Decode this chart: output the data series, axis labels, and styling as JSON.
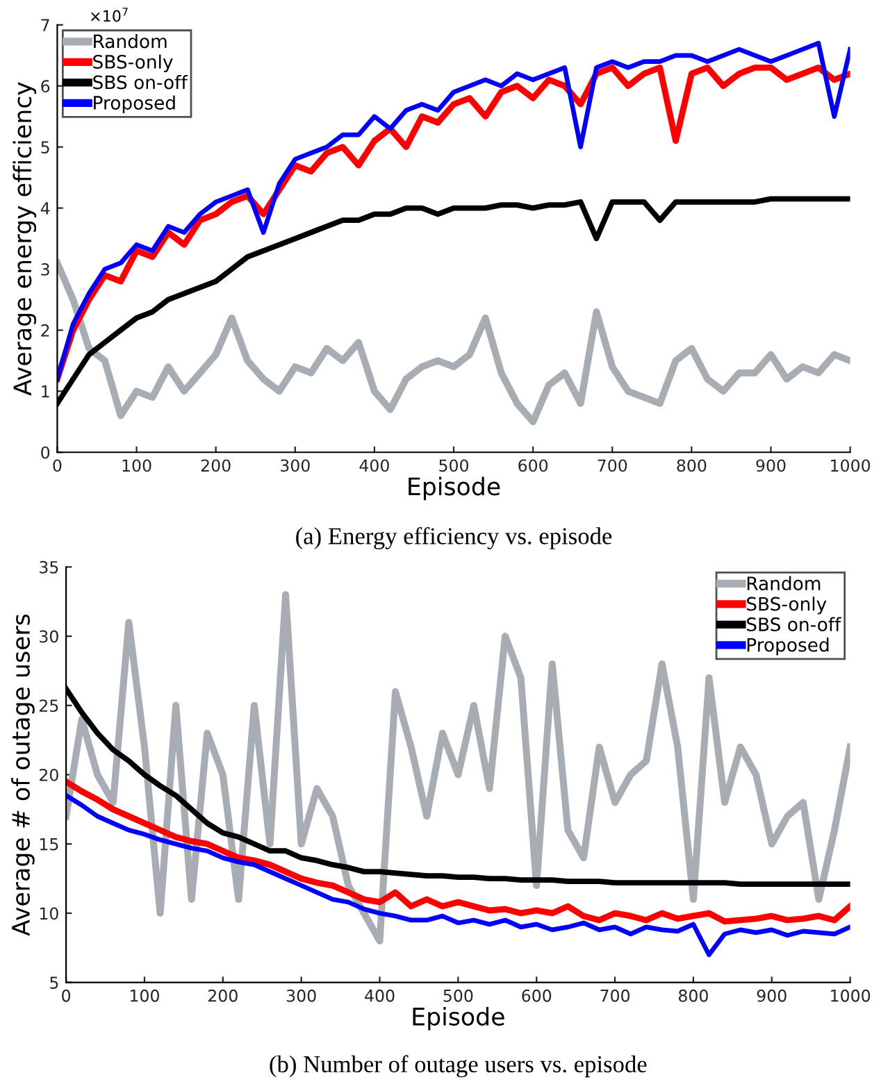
{
  "chart_data": [
    {
      "type": "line",
      "title": "(a) Energy efficiency vs. episode",
      "xlabel": "Episode",
      "ylabel": "Average energy efficiency",
      "annotations": [
        "×10$^{7}$"
      ],
      "x": [
        0,
        20,
        40,
        60,
        80,
        100,
        120,
        140,
        160,
        180,
        200,
        220,
        240,
        260,
        280,
        300,
        320,
        340,
        360,
        380,
        400,
        420,
        440,
        460,
        480,
        500,
        520,
        540,
        560,
        580,
        600,
        620,
        640,
        660,
        680,
        700,
        720,
        740,
        760,
        780,
        800,
        820,
        840,
        860,
        880,
        900,
        920,
        940,
        960,
        980,
        1000
      ],
      "series": [
        {
          "name": "Random",
          "color": "#a8adb4",
          "values": [
            3.1,
            2.5,
            1.7,
            1.5,
            0.6,
            1.0,
            0.9,
            1.4,
            1.0,
            1.3,
            1.6,
            2.2,
            1.5,
            1.2,
            1.0,
            1.4,
            1.3,
            1.7,
            1.5,
            1.8,
            1.0,
            0.7,
            1.2,
            1.4,
            1.5,
            1.4,
            1.6,
            2.2,
            1.3,
            0.8,
            0.5,
            1.1,
            1.3,
            0.8,
            2.3,
            1.4,
            1.0,
            0.9,
            0.8,
            1.5,
            1.7,
            1.2,
            1.0,
            1.3,
            1.3,
            1.6,
            1.2,
            1.4,
            1.3,
            1.6,
            1.5
          ]
        },
        {
          "name": "SBS-only",
          "color": "#ff0000",
          "values": [
            1.2,
            2.0,
            2.5,
            2.9,
            2.8,
            3.3,
            3.2,
            3.6,
            3.4,
            3.8,
            3.9,
            4.1,
            4.2,
            3.9,
            4.3,
            4.7,
            4.6,
            4.9,
            5.0,
            4.7,
            5.1,
            5.3,
            5.0,
            5.5,
            5.4,
            5.7,
            5.8,
            5.5,
            5.9,
            6.0,
            5.8,
            6.1,
            6.0,
            5.7,
            6.2,
            6.3,
            6.0,
            6.2,
            6.3,
            5.1,
            6.2,
            6.3,
            6.0,
            6.2,
            6.3,
            6.3,
            6.1,
            6.2,
            6.3,
            6.1,
            6.2
          ]
        },
        {
          "name": "SBS on-off",
          "color": "#000000",
          "values": [
            0.8,
            1.2,
            1.6,
            1.8,
            2.0,
            2.2,
            2.3,
            2.5,
            2.6,
            2.7,
            2.8,
            3.0,
            3.2,
            3.3,
            3.4,
            3.5,
            3.6,
            3.7,
            3.8,
            3.8,
            3.9,
            3.9,
            4.0,
            4.0,
            3.9,
            4.0,
            4.0,
            4.0,
            4.05,
            4.05,
            4.0,
            4.05,
            4.05,
            4.1,
            3.5,
            4.1,
            4.1,
            4.1,
            3.8,
            4.1,
            4.1,
            4.1,
            4.1,
            4.1,
            4.1,
            4.15,
            4.15,
            4.15,
            4.15,
            4.15,
            4.15
          ]
        },
        {
          "name": "Proposed",
          "color": "#0000ff",
          "values": [
            1.2,
            2.1,
            2.6,
            3.0,
            3.1,
            3.4,
            3.3,
            3.7,
            3.6,
            3.9,
            4.1,
            4.2,
            4.3,
            3.6,
            4.4,
            4.8,
            4.9,
            5.0,
            5.2,
            5.2,
            5.5,
            5.3,
            5.6,
            5.7,
            5.6,
            5.9,
            6.0,
            6.1,
            6.0,
            6.2,
            6.1,
            6.2,
            6.3,
            5.0,
            6.3,
            6.4,
            6.3,
            6.4,
            6.4,
            6.5,
            6.5,
            6.4,
            6.5,
            6.6,
            6.5,
            6.4,
            6.5,
            6.6,
            6.7,
            5.5,
            6.6
          ]
        }
      ],
      "xlim": [
        0,
        1000
      ],
      "xticks": [
        0,
        100,
        200,
        300,
        400,
        500,
        600,
        700,
        800,
        900,
        1000
      ],
      "ylim": [
        0,
        7
      ],
      "yticks": [
        0,
        1,
        2,
        3,
        4,
        5,
        6,
        7
      ],
      "grid": false,
      "legend": "top left"
    },
    {
      "type": "line",
      "title": "(b) Number of outage users vs. episode",
      "xlabel": "Episode",
      "ylabel": "Average # of outage users",
      "x": [
        0,
        20,
        40,
        60,
        80,
        100,
        120,
        140,
        160,
        180,
        200,
        220,
        240,
        260,
        280,
        300,
        320,
        340,
        360,
        380,
        400,
        420,
        440,
        460,
        480,
        500,
        520,
        540,
        560,
        580,
        600,
        620,
        640,
        660,
        680,
        700,
        720,
        740,
        760,
        780,
        800,
        820,
        840,
        860,
        880,
        900,
        920,
        940,
        960,
        980,
        1000
      ],
      "series": [
        {
          "name": "Random",
          "color": "#a8adb4",
          "values": [
            17,
            24,
            20,
            18,
            31,
            22,
            10,
            25,
            11,
            23,
            20,
            11,
            25,
            15,
            33,
            15,
            19,
            17,
            12,
            10,
            8,
            26,
            22,
            17,
            23,
            20,
            25,
            19,
            30,
            27,
            12,
            28,
            16,
            14,
            22,
            18,
            20,
            21,
            28,
            22,
            11,
            27,
            18,
            22,
            20,
            15,
            17,
            18,
            11,
            16,
            22
          ]
        },
        {
          "name": "SBS-only",
          "color": "#ff0000",
          "values": [
            19.5,
            18.8,
            18.2,
            17.5,
            17.0,
            16.5,
            16.0,
            15.5,
            15.2,
            15.0,
            14.5,
            14.0,
            13.8,
            13.5,
            13.0,
            12.5,
            12.2,
            12.0,
            11.5,
            11.0,
            10.8,
            11.5,
            10.5,
            11.0,
            10.5,
            10.8,
            10.5,
            10.2,
            10.3,
            10.0,
            10.2,
            10.0,
            10.5,
            9.8,
            9.5,
            10.0,
            9.8,
            9.5,
            10.0,
            9.6,
            9.8,
            10.0,
            9.4,
            9.5,
            9.6,
            9.8,
            9.5,
            9.6,
            9.8,
            9.5,
            10.5
          ]
        },
        {
          "name": "SBS on-off",
          "color": "#000000",
          "values": [
            26.2,
            24.5,
            23.0,
            21.8,
            21.0,
            20.0,
            19.2,
            18.5,
            17.5,
            16.5,
            15.8,
            15.5,
            15.0,
            14.5,
            14.5,
            14.0,
            13.8,
            13.5,
            13.3,
            13.0,
            13.0,
            12.9,
            12.8,
            12.7,
            12.7,
            12.6,
            12.6,
            12.5,
            12.5,
            12.4,
            12.4,
            12.4,
            12.3,
            12.3,
            12.3,
            12.2,
            12.2,
            12.2,
            12.2,
            12.2,
            12.2,
            12.2,
            12.2,
            12.1,
            12.1,
            12.1,
            12.1,
            12.1,
            12.1,
            12.1,
            12.1
          ]
        },
        {
          "name": "Proposed",
          "color": "#0000ff",
          "values": [
            18.5,
            17.8,
            17.0,
            16.5,
            16.0,
            15.7,
            15.3,
            15.0,
            14.7,
            14.5,
            14.0,
            13.7,
            13.5,
            13.0,
            12.5,
            12.0,
            11.5,
            11.0,
            10.8,
            10.3,
            10.0,
            9.8,
            9.5,
            9.5,
            9.8,
            9.3,
            9.5,
            9.2,
            9.5,
            9.0,
            9.2,
            8.8,
            9.0,
            9.3,
            8.8,
            9.0,
            8.5,
            9.0,
            8.8,
            8.7,
            9.2,
            7.0,
            8.5,
            8.8,
            8.6,
            8.8,
            8.4,
            8.7,
            8.6,
            8.5,
            9.0
          ]
        }
      ],
      "xlim": [
        0,
        1000
      ],
      "xticks": [
        0,
        100,
        200,
        300,
        400,
        500,
        600,
        700,
        800,
        900,
        1000
      ],
      "ylim": [
        5,
        35
      ],
      "yticks": [
        5,
        10,
        15,
        20,
        25,
        30,
        35
      ],
      "grid": false,
      "legend": "top right"
    }
  ]
}
